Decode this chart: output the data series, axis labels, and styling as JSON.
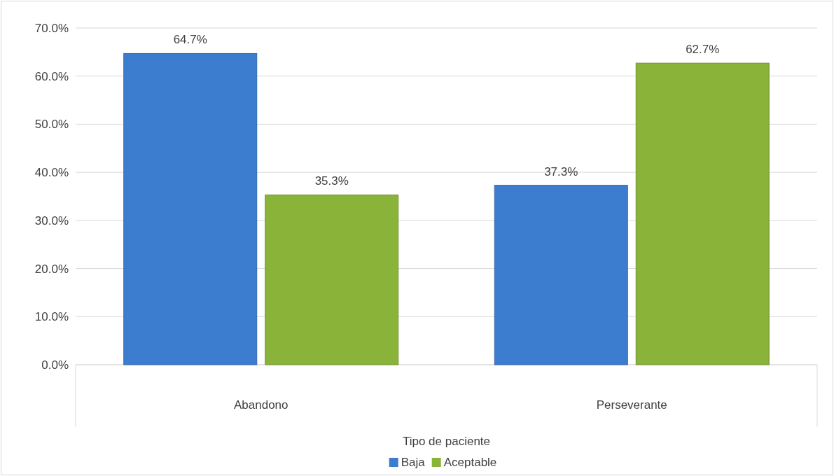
{
  "chart_data": {
    "type": "bar",
    "xlabel": "Tipo de paciente",
    "categories": [
      "Abandono",
      "Perseverante"
    ],
    "series": [
      {
        "name": "Baja",
        "color": "#3c7dcf",
        "values": [
          64.7,
          37.3
        ],
        "value_labels": [
          "64.7%",
          "37.3%"
        ]
      },
      {
        "name": "Aceptable",
        "color": "#8ab33a",
        "values": [
          35.3,
          62.7
        ],
        "value_labels": [
          "35.3%",
          "62.7%"
        ]
      }
    ],
    "ylim": [
      0,
      70
    ],
    "yticks": [
      {
        "value": 0,
        "label": "0.0%"
      },
      {
        "value": 10,
        "label": "10.0%"
      },
      {
        "value": 20,
        "label": "20.0%"
      },
      {
        "value": 30,
        "label": "30.0%"
      },
      {
        "value": 40,
        "label": "40.0%"
      },
      {
        "value": 50,
        "label": "50.0%"
      },
      {
        "value": 60,
        "label": "60.0%"
      },
      {
        "value": 70,
        "label": "70.0%"
      }
    ],
    "grid": "y",
    "legend": "bottom"
  }
}
